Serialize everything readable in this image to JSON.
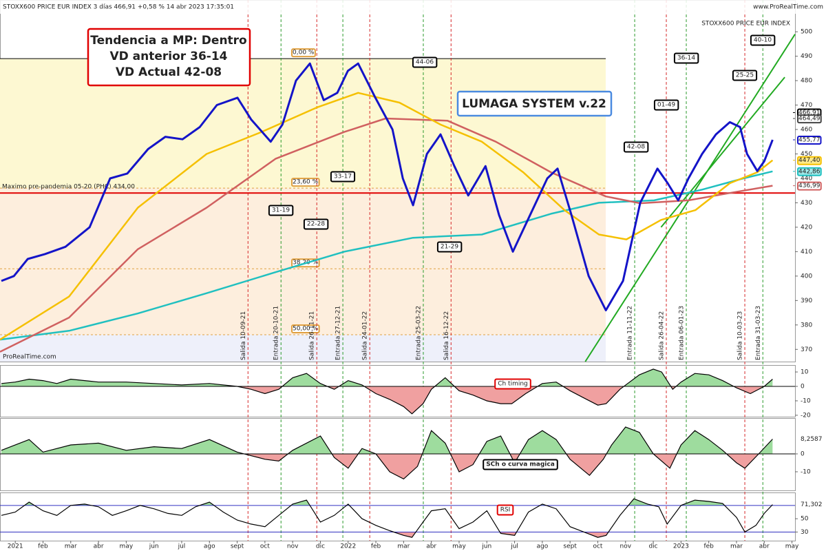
{
  "header": {
    "title": "STOXX600 PRICE EUR INDEX 3 días 466,91 +0,58 % 14 abr 2023 17:35:01",
    "site": "www.ProRealTime.com",
    "watermark": "STOXX600 PRICE EUR INDEX",
    "credit": "ProRealTime.com"
  },
  "info_box": {
    "lines": [
      "Tendencia a MP: Dentro",
      "VD anterior 36-14",
      "VD Actual 42-08"
    ]
  },
  "system_label": "LUMAGA SYSTEM v.22",
  "chart_data": [
    {
      "type": "line",
      "ylim": [
        365,
        513
      ],
      "yticks": [
        370,
        380,
        390,
        400,
        410,
        420,
        430,
        440,
        450,
        460,
        470,
        480,
        490,
        500
      ],
      "xlim": [
        -0.55,
        28.11
      ],
      "xticks": [
        {
          "value": 0,
          "label": "2021"
        },
        {
          "value": 1,
          "label": "feb"
        },
        {
          "value": 2,
          "label": "mar"
        },
        {
          "value": 3,
          "label": "abr"
        },
        {
          "value": 4,
          "label": "may"
        },
        {
          "value": 5,
          "label": "jun"
        },
        {
          "value": 6,
          "label": "jul"
        },
        {
          "value": 7,
          "label": "ago"
        },
        {
          "value": 8,
          "label": "sept"
        },
        {
          "value": 9,
          "label": "oct"
        },
        {
          "value": 10,
          "label": "nov"
        },
        {
          "value": 11,
          "label": "dic"
        },
        {
          "value": 12,
          "label": "2022"
        },
        {
          "value": 13,
          "label": "feb"
        },
        {
          "value": 14,
          "label": "mar"
        },
        {
          "value": 15,
          "label": "abr"
        },
        {
          "value": 16,
          "label": "may"
        },
        {
          "value": 17,
          "label": "jun"
        },
        {
          "value": 18,
          "label": "jul"
        },
        {
          "value": 19,
          "label": "ago"
        },
        {
          "value": 20,
          "label": "sept"
        },
        {
          "value": 21,
          "label": "oct"
        },
        {
          "value": 22,
          "label": "nov"
        },
        {
          "value": 23,
          "label": "dic"
        },
        {
          "value": 24,
          "label": "2023"
        },
        {
          "value": 25,
          "label": "feb"
        },
        {
          "value": 26,
          "label": "mar"
        },
        {
          "value": 27,
          "label": "abr"
        },
        {
          "value": 28,
          "label": "may"
        }
      ],
      "series": [
        {
          "color": "#1414c8",
          "x": [
            -0.5,
            -0.05,
            0.45,
            1.07,
            1.81,
            2.68,
            3.42,
            4.04,
            4.79,
            5.41,
            6.03,
            6.65,
            7.27,
            8.01,
            8.51,
            9.21,
            9.63,
            10.12,
            10.62,
            11.12,
            11.61,
            11.99,
            12.36,
            12.98,
            13.6,
            13.97,
            14.34,
            14.84,
            15.33,
            15.83,
            16.33,
            16.95,
            17.44,
            17.94,
            18.56,
            19.18,
            19.55,
            20.05,
            20.67,
            21.29,
            21.91,
            22.53,
            23.15,
            23.52,
            23.9,
            24.27,
            24.76,
            25.26,
            25.76,
            26.13,
            26.38,
            26.75,
            27,
            27.3
          ],
          "values": [
            398,
            400,
            407,
            409,
            412,
            420,
            440,
            442,
            452,
            457,
            456,
            461,
            470,
            473,
            464,
            455,
            462,
            480,
            487,
            472,
            475,
            484,
            487,
            473,
            460,
            440,
            429,
            450,
            458,
            445,
            433,
            445,
            425,
            410,
            425,
            440,
            444,
            425,
            400,
            386,
            398,
            430,
            444,
            438,
            431,
            440,
            450,
            458,
            463,
            461,
            450,
            443,
            447,
            455.77
          ]
        },
        {
          "color": "#f5c000",
          "x": [
            -0.55,
            1.94,
            4.42,
            6.9,
            8.88,
            10.87,
            12.36,
            13.85,
            15.33,
            16.82,
            18.31,
            19.8,
            21.04,
            22.03,
            23.28,
            24.52,
            25.76,
            26.75,
            27.3
          ],
          "values": [
            374,
            391.6,
            428,
            450,
            459,
            469,
            475,
            471,
            462,
            455,
            442.5,
            427,
            417,
            415,
            423,
            427,
            438,
            442.5,
            447.4
          ]
        },
        {
          "color": "#d06060",
          "x": [
            -0.55,
            1.94,
            4.42,
            6.9,
            9.38,
            11.86,
            13.35,
            15.58,
            17.32,
            19.31,
            21.29,
            22.53,
            24.27,
            25.76,
            27.3
          ],
          "values": [
            369,
            383,
            411,
            428,
            448,
            459,
            464.5,
            463.6,
            455,
            442.5,
            432.6,
            429.8,
            431,
            434,
            437
          ]
        },
        {
          "color": "#20c0c0",
          "x": [
            -0.55,
            1.94,
            4.42,
            6.9,
            9.38,
            11.86,
            14.34,
            16.82,
            19.31,
            21.04,
            23.03,
            24.76,
            26.25,
            27.3
          ],
          "values": [
            374,
            377.6,
            384.7,
            393,
            401.6,
            410,
            415.7,
            417,
            425.5,
            430,
            431,
            435.4,
            440,
            442.86
          ]
        }
      ],
      "price_flags": [
        {
          "value": 466.91,
          "label": "466,91",
          "color": "#000000"
        },
        {
          "value": 464.49,
          "label": "464,49",
          "color": "#444444"
        },
        {
          "value": 455.77,
          "label": "455,77",
          "color": "#1414c8"
        },
        {
          "value": 447.4,
          "label": "447,40",
          "color": "#f5c000"
        },
        {
          "value": 442.86,
          "label": "442,86",
          "color": "#20c0c0"
        },
        {
          "value": 436.99,
          "label": "436,99",
          "color": "#d06060"
        }
      ],
      "hline": {
        "value": 434,
        "label": "Maximo pre-pandemia 05-20 (PHC)  434,00",
        "color": "#e00000"
      },
      "fib_levels": [
        {
          "value": 489,
          "label": "0,00 %"
        },
        {
          "value": 436,
          "label": "23,60 %"
        },
        {
          "value": 403,
          "label": "38,20 %"
        },
        {
          "value": 376,
          "label": "50,00 %"
        }
      ],
      "trendlines": [
        {
          "color": "#22aa22",
          "x": [
            20.55,
            28.11
          ],
          "values": [
            365,
            499
          ]
        },
        {
          "color": "#22aa22",
          "x": [
            23.28,
            27.74
          ],
          "values": [
            420,
            481.4
          ]
        }
      ],
      "signals": [
        {
          "label": "Salida 10-09-21",
          "x": 8.39,
          "color": "#d62728"
        },
        {
          "label": "Entrada 20-10-21",
          "x": 9.58,
          "color": "#2a9a2a"
        },
        {
          "label": "Salida 26-11-21",
          "x": 10.87,
          "color": "#d62728"
        },
        {
          "label": "Entrada 27-12-21",
          "x": 11.81,
          "color": "#2a9a2a"
        },
        {
          "label": "Salida 24-01-22",
          "x": 12.78,
          "color": "#d62728"
        },
        {
          "label": "Entrada 25-03-22",
          "x": 14.71,
          "color": "#2a9a2a"
        },
        {
          "label": "Salida 16-12-22",
          "x": 15.71,
          "color": "#d62728"
        },
        {
          "label": "Entrada 11-11-22",
          "x": 22.33,
          "color": "#2a9a2a"
        },
        {
          "label": "Salida 26-04-22",
          "x": 23.47,
          "color": "#d62728"
        },
        {
          "label": "Entrada 06-01-23",
          "x": 24.19,
          "color": "#2a9a2a"
        },
        {
          "label": "Salida 10-03-23",
          "x": 26.3,
          "color": "#d62728"
        },
        {
          "label": "Entrada 31-03-23",
          "x": 26.95,
          "color": "#2a9a2a"
        }
      ],
      "scores": [
        {
          "text": "31-19",
          "color": "#0a7a0a"
        },
        {
          "text": "22-28",
          "color": "#d00000"
        },
        {
          "text": "33-17",
          "color": "#0a7a0a"
        },
        {
          "text": "44-06",
          "color": "#0a7a0a"
        },
        {
          "text": "21-29",
          "color": "#d00000"
        },
        {
          "text": "42-08",
          "color": "#0a7a0a"
        },
        {
          "text": "01-49",
          "color": "#d00000"
        },
        {
          "text": "36-14",
          "color": "#0a7a0a"
        },
        {
          "text": "25-25",
          "color": "#d00000"
        },
        {
          "text": "40-10",
          "color": "#0a7a0a"
        }
      ]
    },
    {
      "type": "area",
      "title": "Ch timing",
      "ylim": [
        -21,
        14.8
      ],
      "yticks": [
        10,
        0,
        -10,
        -20
      ],
      "x": [
        -0.5,
        0,
        0.5,
        1,
        1.5,
        2,
        3,
        4,
        5,
        6,
        7,
        8,
        8.5,
        9,
        9.5,
        10,
        10.5,
        11,
        11.5,
        12,
        12.5,
        13,
        13.5,
        14,
        14.3,
        14.7,
        15,
        15.5,
        16,
        16.5,
        17,
        17.5,
        17.9,
        18.4,
        19,
        19.5,
        20,
        20.5,
        21,
        21.3,
        21.8,
        22.5,
        23,
        23.3,
        23.7,
        24,
        24.5,
        25,
        25.5,
        26,
        26.5,
        27,
        27.3
      ],
      "values": [
        2,
        3,
        5,
        4,
        2,
        5,
        3,
        3,
        2,
        1,
        2,
        0,
        -2,
        -5,
        -2,
        6,
        9,
        2,
        -2,
        4,
        1,
        -5,
        -9,
        -14,
        -19,
        -12,
        -2,
        6,
        -3,
        -6,
        -10,
        -12,
        -12,
        -5,
        2,
        3,
        -3,
        -8,
        -13,
        -12,
        -2,
        8,
        12,
        10,
        -2,
        3,
        9,
        8,
        4,
        -1,
        -5,
        0,
        5
      ]
    },
    {
      "type": "area",
      "title": "SCh o curva magica",
      "ylim": [
        -20.4,
        20
      ],
      "yticks": [
        0,
        -10
      ],
      "value_flag": {
        "value": 8.2587,
        "label": "8,2587"
      },
      "x": [
        -0.5,
        0.5,
        1,
        2,
        3,
        4,
        5,
        6,
        7,
        8,
        9,
        9.5,
        10,
        11,
        11.5,
        12,
        12.5,
        13,
        13.5,
        14,
        14.5,
        15,
        15.5,
        16,
        16.5,
        17,
        17.5,
        18,
        18.5,
        19,
        19.5,
        20,
        20.7,
        21.2,
        21.5,
        22,
        22.5,
        23,
        23.6,
        24,
        24.5,
        25,
        25.5,
        26,
        26.3,
        26.8,
        27.3
      ],
      "values": [
        2,
        8,
        1,
        5,
        6,
        2,
        4,
        3,
        8,
        1,
        -3,
        -4,
        2,
        10,
        -2,
        -8,
        3,
        0,
        -10,
        -14,
        -7,
        13,
        6,
        -10,
        -6,
        7,
        10,
        -5,
        8,
        13,
        8,
        -3,
        -12,
        -3,
        5,
        15,
        12,
        0,
        -8,
        5,
        13,
        8,
        2,
        -5,
        -8,
        0,
        8.2587
      ]
    },
    {
      "type": "area",
      "title": "RSI",
      "ylim": [
        17,
        89.5
      ],
      "yticks": [
        30,
        50
      ],
      "bands": [
        30,
        70
      ],
      "value_flag": {
        "value": 71.302,
        "label": "71,302"
      },
      "x": [
        -0.5,
        0,
        0.5,
        1,
        1.5,
        2,
        2.5,
        3,
        3.5,
        4,
        4.5,
        5,
        5.5,
        6,
        6.5,
        7,
        7.5,
        8,
        8.5,
        9,
        9.5,
        10,
        10.5,
        11,
        11.5,
        12,
        12.5,
        13,
        13.5,
        14,
        14.3,
        14.7,
        15,
        15.5,
        16,
        16.5,
        17,
        17.5,
        18,
        18.5,
        19,
        19.5,
        20,
        20.5,
        21,
        21.3,
        21.8,
        22.3,
        22.8,
        23.2,
        23.5,
        24,
        24.5,
        25,
        25.5,
        26,
        26.3,
        26.7,
        27,
        27.3
      ],
      "values": [
        55,
        60,
        75,
        62,
        55,
        70,
        72,
        68,
        55,
        62,
        70,
        65,
        58,
        55,
        68,
        75,
        60,
        48,
        42,
        38,
        55,
        72,
        78,
        45,
        55,
        72,
        50,
        40,
        32,
        25,
        22,
        45,
        62,
        65,
        35,
        45,
        62,
        28,
        25,
        60,
        72,
        65,
        38,
        30,
        22,
        25,
        55,
        80,
        72,
        68,
        42,
        70,
        78,
        76,
        73,
        52,
        30,
        40,
        58,
        71.302
      ]
    }
  ]
}
